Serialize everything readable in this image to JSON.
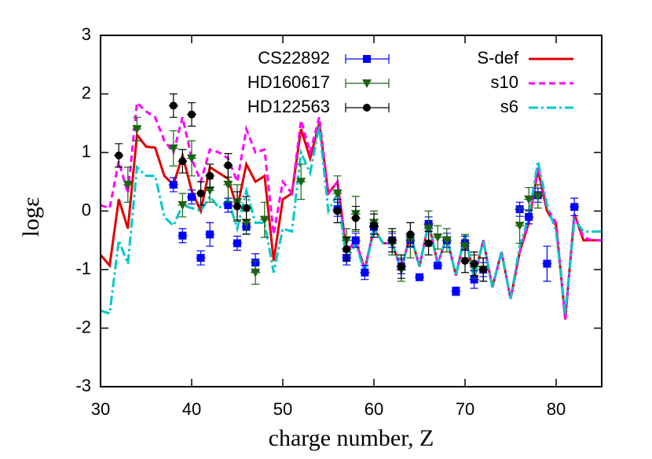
{
  "chart_data": {
    "type": "line",
    "x_label": "charge number, Z",
    "y_label": "logε",
    "xlim": [
      30,
      85
    ],
    "ylim": [
      -3,
      3
    ],
    "xticks": [
      30,
      40,
      50,
      60,
      70,
      80
    ],
    "yticks": [
      -3,
      -2,
      -1,
      0,
      1,
      2,
      3
    ],
    "x": [
      30,
      31,
      32,
      33,
      34,
      35,
      36,
      37,
      38,
      39,
      40,
      41,
      42,
      43,
      44,
      45,
      46,
      47,
      48,
      49,
      50,
      51,
      52,
      53,
      54,
      55,
      56,
      57,
      58,
      59,
      60,
      61,
      62,
      63,
      64,
      65,
      66,
      67,
      68,
      69,
      70,
      71,
      72,
      73,
      74,
      75,
      76,
      77,
      78,
      79,
      80,
      81,
      82,
      83,
      84,
      85
    ],
    "series": [
      {
        "name": "CS22892",
        "color": "#0000ff",
        "kind": "points",
        "marker": "square",
        "x": [
          38,
          39,
          40,
          41,
          42,
          44,
          45,
          46,
          47,
          56,
          57,
          58,
          59,
          60,
          62,
          63,
          64,
          65,
          66,
          67,
          68,
          69,
          70,
          71,
          72,
          76,
          77,
          78,
          79,
          82
        ],
        "values": [
          0.45,
          -0.42,
          0.24,
          -0.8,
          -0.4,
          0.1,
          -0.55,
          -0.27,
          -0.88,
          0.03,
          -0.8,
          -0.5,
          -1.05,
          -0.27,
          -0.5,
          -0.95,
          -0.5,
          -1.13,
          -0.22,
          -0.93,
          -0.5,
          -1.37,
          -0.55,
          -1.17,
          -1.0,
          0.03,
          -0.1,
          0.27,
          -0.9,
          0.07
        ],
        "errors": [
          0.12,
          0.12,
          0.12,
          0.12,
          0.2,
          0.12,
          0.12,
          0.12,
          0.15,
          0.12,
          0.12,
          0.12,
          0.12,
          0.12,
          0.12,
          0.12,
          0.12,
          0.05,
          0.12,
          0.05,
          0.12,
          0.07,
          0.12,
          0.15,
          0.12,
          0.12,
          0.12,
          0.12,
          0.3,
          0.15
        ]
      },
      {
        "name": "HD160617",
        "color": "#1a6412",
        "kind": "points",
        "marker": "triangle",
        "x": [
          33,
          34,
          38,
          39,
          40,
          42,
          44,
          45,
          46,
          47,
          48,
          52,
          56,
          57,
          58,
          60,
          62,
          63,
          64,
          66,
          67,
          68,
          70,
          71,
          72,
          76,
          77,
          78
        ],
        "values": [
          0.45,
          1.4,
          1.07,
          0.1,
          0.9,
          0.35,
          0.45,
          0.15,
          -0.2,
          -1.05,
          -0.15,
          0.5,
          0.3,
          -0.5,
          -0.05,
          -0.2,
          -0.55,
          -1.0,
          -0.5,
          -0.3,
          -0.45,
          -0.5,
          -0.6,
          -0.95,
          -1.0,
          -0.25,
          0.2,
          0.25
        ],
        "errors": [
          0.3,
          0.2,
          0.3,
          0.2,
          0.3,
          0.2,
          0.3,
          0.3,
          0.2,
          0.2,
          0.3,
          0.3,
          0.3,
          0.2,
          0.3,
          0.2,
          0.2,
          0.2,
          0.3,
          0.3,
          0.2,
          0.2,
          0.2,
          0.2,
          0.2,
          0.3,
          0.2,
          0.2
        ]
      },
      {
        "name": "HD122563",
        "color": "#000000",
        "kind": "points",
        "marker": "circle",
        "x": [
          32,
          38,
          39,
          40,
          41,
          42,
          44,
          45,
          46,
          56,
          57,
          58,
          60,
          62,
          63,
          64,
          66,
          70,
          71,
          72
        ],
        "values": [
          0.95,
          1.8,
          0.85,
          1.65,
          0.3,
          0.6,
          0.78,
          0.08,
          0.05,
          0.0,
          -0.65,
          -0.12,
          -0.25,
          -0.5,
          -0.95,
          -0.4,
          -0.55,
          -0.85,
          -0.9,
          -1.0
        ],
        "errors": [
          0.2,
          0.2,
          0.2,
          0.2,
          0.2,
          0.2,
          0.2,
          0.25,
          0.2,
          0.2,
          0.2,
          0.2,
          0.2,
          0.2,
          0.2,
          0.2,
          0.2,
          0.2,
          0.2,
          0.2
        ]
      },
      {
        "name": "S-def",
        "color": "#e00000",
        "kind": "line",
        "dash": "solid",
        "values": [
          -0.75,
          -0.93,
          0.2,
          -0.3,
          1.3,
          1.1,
          1.08,
          0.6,
          0.45,
          0.95,
          0.35,
          0.0,
          0.75,
          0.65,
          0.55,
          0.05,
          0.8,
          0.5,
          0.6,
          -0.85,
          0.2,
          0.3,
          1.4,
          0.9,
          1.5,
          0.3,
          0.5,
          -0.7,
          -0.5,
          -1.0,
          -0.3,
          -0.55,
          -0.55,
          -1.0,
          -0.4,
          -0.95,
          -0.2,
          -0.9,
          -0.45,
          -1.1,
          -0.4,
          -1.15,
          -0.5,
          -1.3,
          -0.7,
          -1.5,
          -0.7,
          -0.2,
          0.7,
          0.0,
          -0.25,
          -1.85,
          -0.05,
          -0.5,
          -0.5,
          -0.5
        ]
      },
      {
        "name": "s10",
        "color": "#ff00ff",
        "kind": "line",
        "dash": "dashed",
        "values": [
          0.1,
          0.05,
          0.85,
          0.3,
          1.85,
          1.7,
          1.6,
          1.2,
          1.0,
          1.6,
          0.9,
          0.5,
          1.05,
          1.0,
          0.9,
          0.5,
          1.4,
          1.0,
          1.05,
          -0.4,
          0.5,
          0.3,
          1.55,
          1.0,
          1.6,
          0.3,
          0.5,
          -0.7,
          -0.5,
          -1.0,
          -0.3,
          -0.55,
          -0.55,
          -1.0,
          -0.4,
          -0.95,
          -0.2,
          -0.9,
          -0.45,
          -1.1,
          -0.4,
          -1.15,
          -0.5,
          -1.3,
          -0.7,
          -1.5,
          -0.7,
          -0.15,
          0.75,
          0.05,
          -0.2,
          -1.85,
          -0.05,
          -0.45,
          -0.5,
          -0.5
        ]
      },
      {
        "name": "s6",
        "color": "#00c8c8",
        "kind": "line",
        "dash": "dashdot",
        "values": [
          -1.7,
          -1.75,
          -0.5,
          -0.9,
          0.75,
          0.6,
          0.6,
          -0.1,
          -0.25,
          0.1,
          0.05,
          0.0,
          0.25,
          0.05,
          0.2,
          -0.3,
          0.35,
          -0.2,
          -0.2,
          -1.05,
          -0.3,
          -0.35,
          1.0,
          0.65,
          1.45,
          0.0,
          0.3,
          -0.85,
          -0.55,
          -1.05,
          -0.3,
          -0.55,
          -0.55,
          -1.0,
          -0.4,
          -0.95,
          -0.2,
          -0.9,
          -0.45,
          -1.1,
          -0.4,
          -1.15,
          -0.5,
          -1.3,
          -0.7,
          -1.5,
          -0.6,
          -0.1,
          0.85,
          0.1,
          -0.35,
          -1.75,
          -0.15,
          -0.35,
          -0.35,
          -0.35
        ]
      }
    ]
  }
}
